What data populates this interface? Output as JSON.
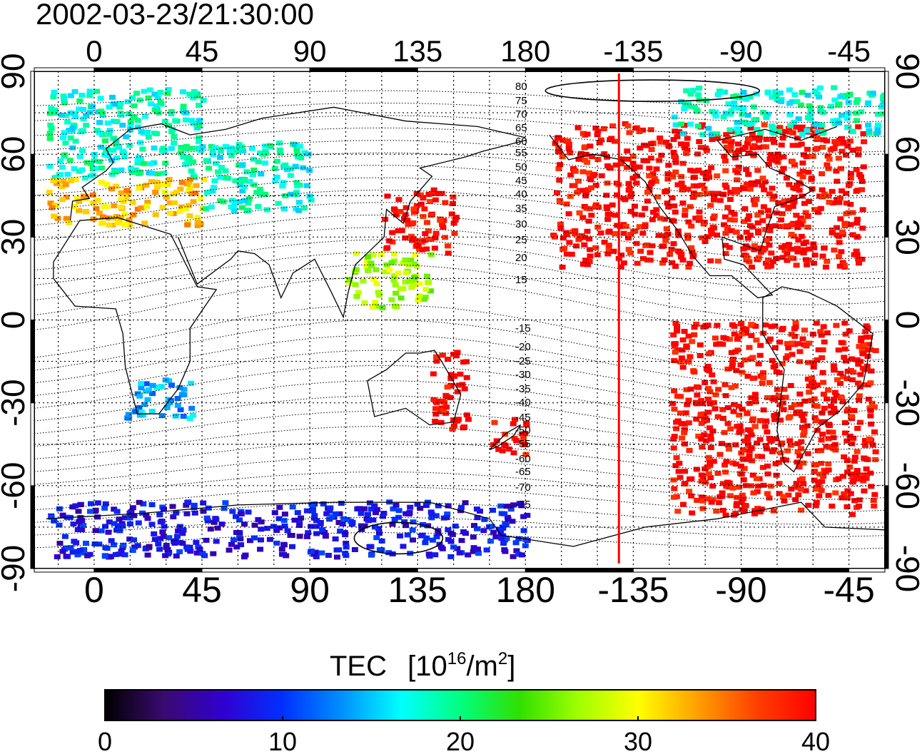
{
  "title": "2002-03-23/21:30:00",
  "map": {
    "lon_ticks": [
      "0",
      "45",
      "90",
      "135",
      "180",
      "-135",
      "-90",
      "-45"
    ],
    "lat_ticks": [
      "90",
      "60",
      "30",
      "0",
      "-30",
      "-60",
      "-90"
    ],
    "lon_range": [
      -25,
      330
    ],
    "lat_range": [
      -90,
      90
    ],
    "grid": true,
    "terminator_longitude": -141,
    "terminator_color": "#ff0000",
    "contour_labels_north": [
      "80",
      "75",
      "70",
      "65",
      "60",
      "55",
      "50",
      "45",
      "40",
      "35",
      "30",
      "25",
      "20",
      "15"
    ],
    "contour_labels_south": [
      "-15",
      "-20",
      "-25",
      "-30",
      "-35",
      "-40",
      "-45",
      "-50",
      "-55",
      "-60",
      "-65",
      "-70",
      "-75"
    ]
  },
  "colorbar": {
    "title": "TEC",
    "unit_prefix": "[10",
    "unit_exp1": "16",
    "unit_mid": "/m",
    "unit_exp2": "2",
    "unit_suffix": "]",
    "ticks": [
      "0",
      "10",
      "20",
      "30",
      "40"
    ],
    "range": [
      0,
      40
    ],
    "colors": [
      "#000000",
      "#3a0a70",
      "#3000d0",
      "#0030ff",
      "#0090ff",
      "#00ffff",
      "#00ff80",
      "#30e000",
      "#a0ff00",
      "#ffff00",
      "#ffa000",
      "#ff4000",
      "#ff0000"
    ]
  },
  "chart_data": {
    "type": "heatmap",
    "title": "2002-03-23/21:30:00",
    "xlabel": "",
    "ylabel": "",
    "colorbar_label": "TEC [10^16/m^2]",
    "xlim": [
      -25,
      330
    ],
    "ylim": [
      -90,
      90
    ],
    "clim": [
      0,
      40
    ],
    "regions": [
      {
        "lon": [
          -20,
          45
        ],
        "lat": [
          52,
          85
        ],
        "tec": 18
      },
      {
        "lon": [
          -20,
          45
        ],
        "lat": [
          35,
          52
        ],
        "tec": 32
      },
      {
        "lon": [
          45,
          90
        ],
        "lat": [
          40,
          65
        ],
        "tec": 18
      },
      {
        "lon": [
          120,
          150
        ],
        "lat": [
          25,
          48
        ],
        "tec": 40
      },
      {
        "lon": [
          105,
          140
        ],
        "lat": [
          5,
          25
        ],
        "tec": 27
      },
      {
        "lon": [
          12,
          40
        ],
        "lat": [
          -35,
          -20
        ],
        "tec": 14
      },
      {
        "lon": [
          140,
          155
        ],
        "lat": [
          -40,
          -10
        ],
        "tec": 40
      },
      {
        "lon": [
          165,
          180
        ],
        "lat": [
          -48,
          -35
        ],
        "tec": 40
      },
      {
        "lon": [
          190,
          320
        ],
        "lat": [
          20,
          72
        ],
        "tec": 40
      },
      {
        "lon": [
          240,
          325
        ],
        "lat": [
          -70,
          0
        ],
        "tec": 40
      },
      {
        "lon": [
          240,
          330
        ],
        "lat": [
          68,
          85
        ],
        "tec": 18
      },
      {
        "lon": [
          -20,
          180
        ],
        "lat": [
          -85,
          -65
        ],
        "tec": 8
      }
    ]
  }
}
